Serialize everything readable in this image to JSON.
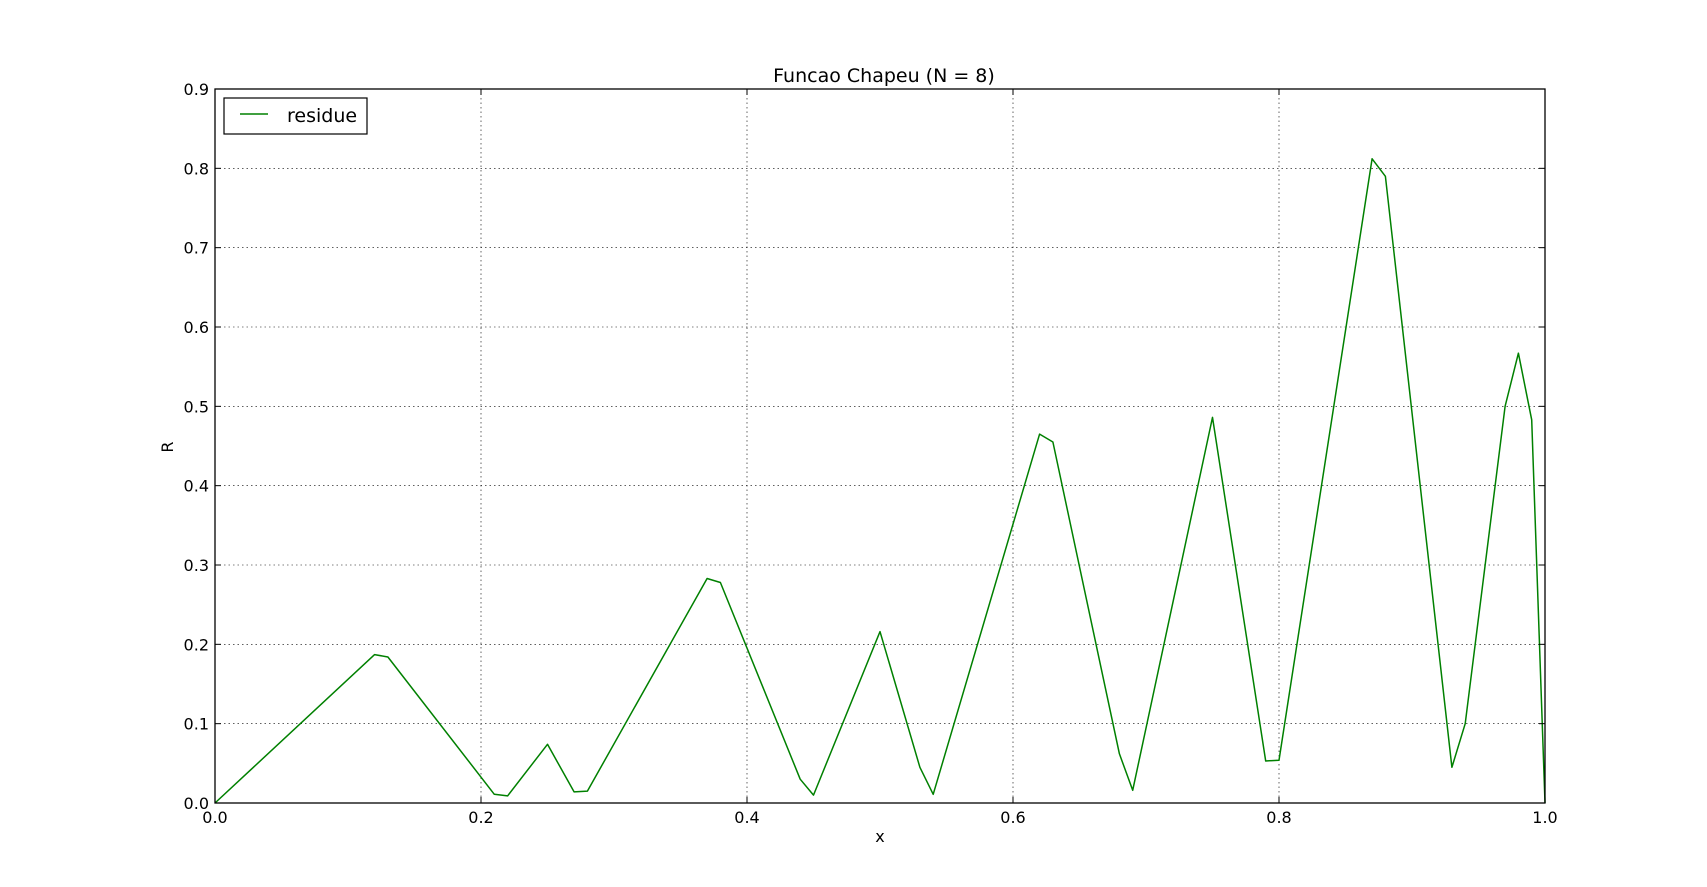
{
  "chart_data": {
    "type": "line",
    "title": "Funcao Chapeu (N = 8)",
    "xlabel": "x",
    "ylabel": "R",
    "xlim": [
      0.0,
      1.0
    ],
    "ylim": [
      0.0,
      0.9
    ],
    "xticks": [
      0.0,
      0.2,
      0.4,
      0.6,
      0.8,
      1.0
    ],
    "xtick_labels": [
      "0.0",
      "0.2",
      "0.4",
      "0.6",
      "0.8",
      "1.0"
    ],
    "yticks": [
      0.0,
      0.1,
      0.2,
      0.3,
      0.4,
      0.5,
      0.6,
      0.7,
      0.8,
      0.9
    ],
    "ytick_labels": [
      "0.0",
      "0.1",
      "0.2",
      "0.3",
      "0.4",
      "0.5",
      "0.6",
      "0.7",
      "0.8",
      "0.9"
    ],
    "grid": true,
    "legend_position": "upper-left",
    "series": [
      {
        "name": "residue",
        "color": "#008000",
        "x": [
          0.0,
          0.12,
          0.13,
          0.21,
          0.22,
          0.25,
          0.27,
          0.28,
          0.37,
          0.38,
          0.44,
          0.45,
          0.5,
          0.53,
          0.54,
          0.62,
          0.63,
          0.68,
          0.69,
          0.75,
          0.79,
          0.8,
          0.87,
          0.88,
          0.93,
          0.94,
          0.97,
          0.98,
          0.99,
          1.0
        ],
        "y": [
          0.0,
          0.187,
          0.184,
          0.011,
          0.009,
          0.074,
          0.014,
          0.015,
          0.283,
          0.278,
          0.03,
          0.01,
          0.216,
          0.045,
          0.011,
          0.465,
          0.455,
          0.062,
          0.016,
          0.486,
          0.053,
          0.054,
          0.812,
          0.79,
          0.045,
          0.1,
          0.5,
          0.567,
          0.483,
          0.0
        ]
      }
    ]
  }
}
